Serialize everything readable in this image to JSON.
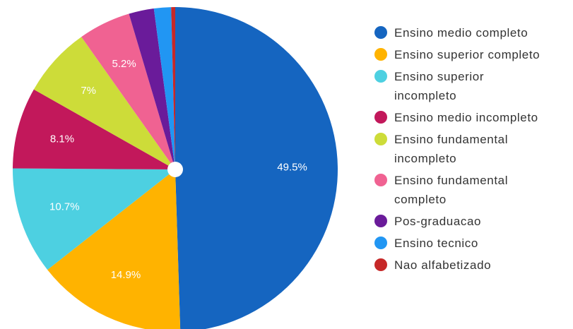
{
  "chart_data": {
    "type": "pie",
    "categories": [
      "Ensino medio completo",
      "Ensino superior completo",
      "Ensino superior incompleto",
      "Ensino medio incompleto",
      "Ensino fundamental incompleto",
      "Ensino fundamental completo",
      "Pos-graduacao",
      "Ensino tecnico",
      "Nao alfabetizado"
    ],
    "values": [
      49.5,
      14.9,
      10.7,
      8.1,
      7,
      5.2,
      2.5,
      1.7,
      0.4
    ],
    "value_labels": [
      "49.5%",
      "14.9%",
      "10.7%",
      "8.1%",
      "7%",
      "5.2%",
      null,
      null,
      null
    ],
    "colors": [
      "#1565c0",
      "#ffb300",
      "#4dd0e1",
      "#c2185b",
      "#cddc39",
      "#f06292",
      "#6a1b9a",
      "#2196f3",
      "#c62828"
    ],
    "legend": "right"
  }
}
